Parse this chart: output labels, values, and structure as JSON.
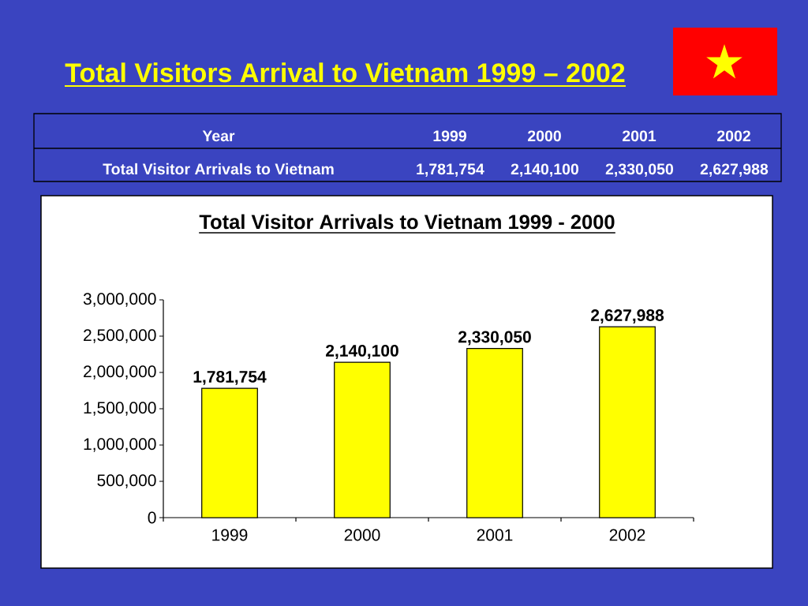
{
  "chart_data": {
    "type": "bar",
    "title": "Total Visitors Arrival to Vietnam 1999 – 2002",
    "subtitle": "Total Visitor Arrivals to Vietnam 1999 - 2000",
    "categories": [
      "1999",
      "2000",
      "2001",
      "2002"
    ],
    "series": [
      {
        "color": "#ffff00",
        "values": [
          1781754,
          2140100,
          2330050,
          2627988
        ],
        "value_labels": [
          "1,781,754",
          "2,140,100",
          "2,330,050",
          "2,627,988"
        ]
      }
    ],
    "ylim": [
      0,
      3000000
    ],
    "yticks": [
      {
        "value": 0,
        "label": "0"
      },
      {
        "value": 500000,
        "label": "500,000"
      },
      {
        "value": 1000000,
        "label": "1,000,000"
      },
      {
        "value": 1500000,
        "label": "1,500,000"
      },
      {
        "value": 2000000,
        "label": "2,000,000"
      },
      {
        "value": 2500000,
        "label": "2,500,000"
      },
      {
        "value": 3000000,
        "label": "3,000,000"
      }
    ],
    "annotations": [
      "Year",
      "Total Visitor Arrivals to Vietnam"
    ]
  }
}
